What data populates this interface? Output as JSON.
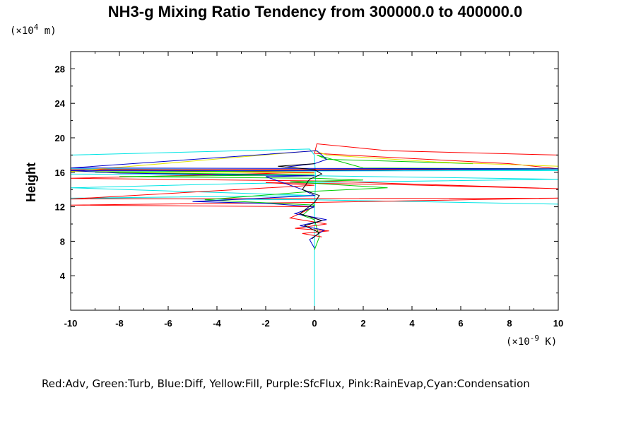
{
  "chart_data": {
    "type": "line",
    "title": "NH3-g Mixing Ratio Tendency from 300000.0 to 400000.0",
    "ylabel": "Height",
    "xlabel": "",
    "x_scale_label_prefix": "(×10",
    "x_scale_exponent": "-9",
    "x_scale_label_suffix": " K)",
    "y_scale_label_prefix": "(×10",
    "y_scale_exponent": "4",
    "y_scale_label_suffix": " m)",
    "xlim": [
      -10,
      10
    ],
    "ylim": [
      0,
      30
    ],
    "x_ticks": [
      -10,
      -8,
      -6,
      -4,
      -2,
      0,
      2,
      4,
      6,
      8,
      10
    ],
    "x_tick_labels": [
      "-10",
      "-8",
      "-6",
      "-4",
      "-2",
      "0",
      "2",
      "4",
      "6",
      "8",
      "10"
    ],
    "y_ticks": [
      4,
      8,
      12,
      16,
      20,
      24,
      28
    ],
    "y_tick_labels": [
      "4",
      "8",
      "12",
      "16",
      "20",
      "24",
      "28"
    ],
    "grid": false,
    "legend_text": "Red:Adv, Green:Turb, Blue:Diff, Yellow:Fill, Purple:SfcFlux, Pink:RainEvap,Cyan:Condensation",
    "series": [
      {
        "color": "#00e5e5",
        "points": [
          [
            0,
            0.1
          ],
          [
            0,
            2
          ],
          [
            0,
            5
          ],
          [
            0,
            8
          ],
          [
            0,
            10
          ],
          [
            0,
            12
          ],
          [
            0.05,
            15
          ],
          [
            0,
            18
          ],
          [
            -0.2,
            18.7
          ],
          [
            -3,
            18.5
          ],
          [
            -10,
            18
          ],
          [
            -10,
            16.4
          ],
          [
            2,
            16.3
          ],
          [
            10,
            16.3
          ],
          [
            10,
            16.2
          ],
          [
            -10,
            16.1
          ],
          [
            -10,
            15.8
          ],
          [
            0,
            15.6
          ],
          [
            10,
            15.2
          ],
          [
            -3,
            14.7
          ],
          [
            -10,
            14.2
          ],
          [
            0,
            13.3
          ],
          [
            -10,
            13
          ],
          [
            0,
            12.8
          ],
          [
            10,
            12.3
          ]
        ]
      },
      {
        "color": "#ff0000",
        "points": [
          [
            10,
            18
          ],
          [
            3,
            18.5
          ],
          [
            0.1,
            19.3
          ],
          [
            0,
            18.2
          ],
          [
            8,
            17
          ],
          [
            10,
            16.4
          ],
          [
            -10,
            16.3
          ],
          [
            0,
            16
          ],
          [
            -10,
            15.3
          ],
          [
            0,
            15
          ],
          [
            10,
            14.1
          ],
          [
            3,
            14.6
          ],
          [
            -2,
            14.8
          ],
          [
            0,
            14.5
          ],
          [
            -10,
            12.9
          ],
          [
            10,
            13
          ],
          [
            0,
            12.5
          ],
          [
            -10,
            12.2
          ],
          [
            0,
            12
          ],
          [
            -1,
            10.7
          ],
          [
            0.5,
            10
          ],
          [
            -0.8,
            9.5
          ],
          [
            0.6,
            9.2
          ],
          [
            -0.5,
            8.9
          ],
          [
            0.3,
            8.5
          ]
        ]
      },
      {
        "color": "#00cc00",
        "points": [
          [
            6.5,
            17
          ],
          [
            3,
            17.3
          ],
          [
            0.5,
            17.5
          ],
          [
            0.1,
            18
          ],
          [
            2,
            16.5
          ],
          [
            10,
            16.4
          ],
          [
            -9,
            16
          ],
          [
            0,
            15.7
          ],
          [
            -8,
            15.5
          ],
          [
            0,
            15.3
          ],
          [
            2,
            15.1
          ],
          [
            -1,
            14.9
          ],
          [
            3,
            14.2
          ],
          [
            0,
            13.8
          ],
          [
            -4.5,
            12.8
          ],
          [
            0,
            12.2
          ],
          [
            -0.5,
            11
          ],
          [
            0,
            10.5
          ],
          [
            0.2,
            8.5
          ],
          [
            0,
            7
          ]
        ]
      },
      {
        "color": "#e5e500",
        "points": [
          [
            10,
            16.7
          ],
          [
            5,
            17.2
          ],
          [
            0.5,
            18
          ],
          [
            0,
            18.5
          ],
          [
            -10,
            16.1
          ],
          [
            0,
            15.9
          ]
        ]
      },
      {
        "color": "#0000cc",
        "points": [
          [
            -1.2,
            16.6
          ],
          [
            0,
            17
          ],
          [
            0.5,
            17.5
          ],
          [
            0.1,
            18.5
          ],
          [
            -10,
            16.5
          ],
          [
            10,
            16.4
          ],
          [
            0,
            16.2
          ],
          [
            -10,
            16.2
          ],
          [
            -8,
            15.9
          ],
          [
            0,
            15.6
          ],
          [
            -2,
            15.5
          ],
          [
            -0.5,
            14
          ],
          [
            0,
            13.3
          ],
          [
            -5,
            12.6
          ],
          [
            -2,
            12.4
          ],
          [
            0,
            12
          ],
          [
            -0.8,
            11.2
          ],
          [
            0.5,
            10.5
          ],
          [
            -0.6,
            9.8
          ],
          [
            0.4,
            9.3
          ],
          [
            -0.2,
            8.2
          ],
          [
            0,
            7.2
          ]
        ]
      },
      {
        "color": "#000000",
        "points": [
          [
            0,
            17
          ],
          [
            -1.5,
            16.7
          ],
          [
            0,
            16.3
          ],
          [
            0.3,
            15.8
          ],
          [
            -0.2,
            15.2
          ],
          [
            -0.5,
            14
          ],
          [
            0.2,
            13.3
          ],
          [
            0,
            12.5
          ],
          [
            -0.6,
            11.2
          ],
          [
            0.3,
            10.4
          ],
          [
            -0.4,
            9.8
          ],
          [
            0.2,
            9
          ],
          [
            -0.1,
            8.3
          ]
        ]
      }
    ]
  }
}
